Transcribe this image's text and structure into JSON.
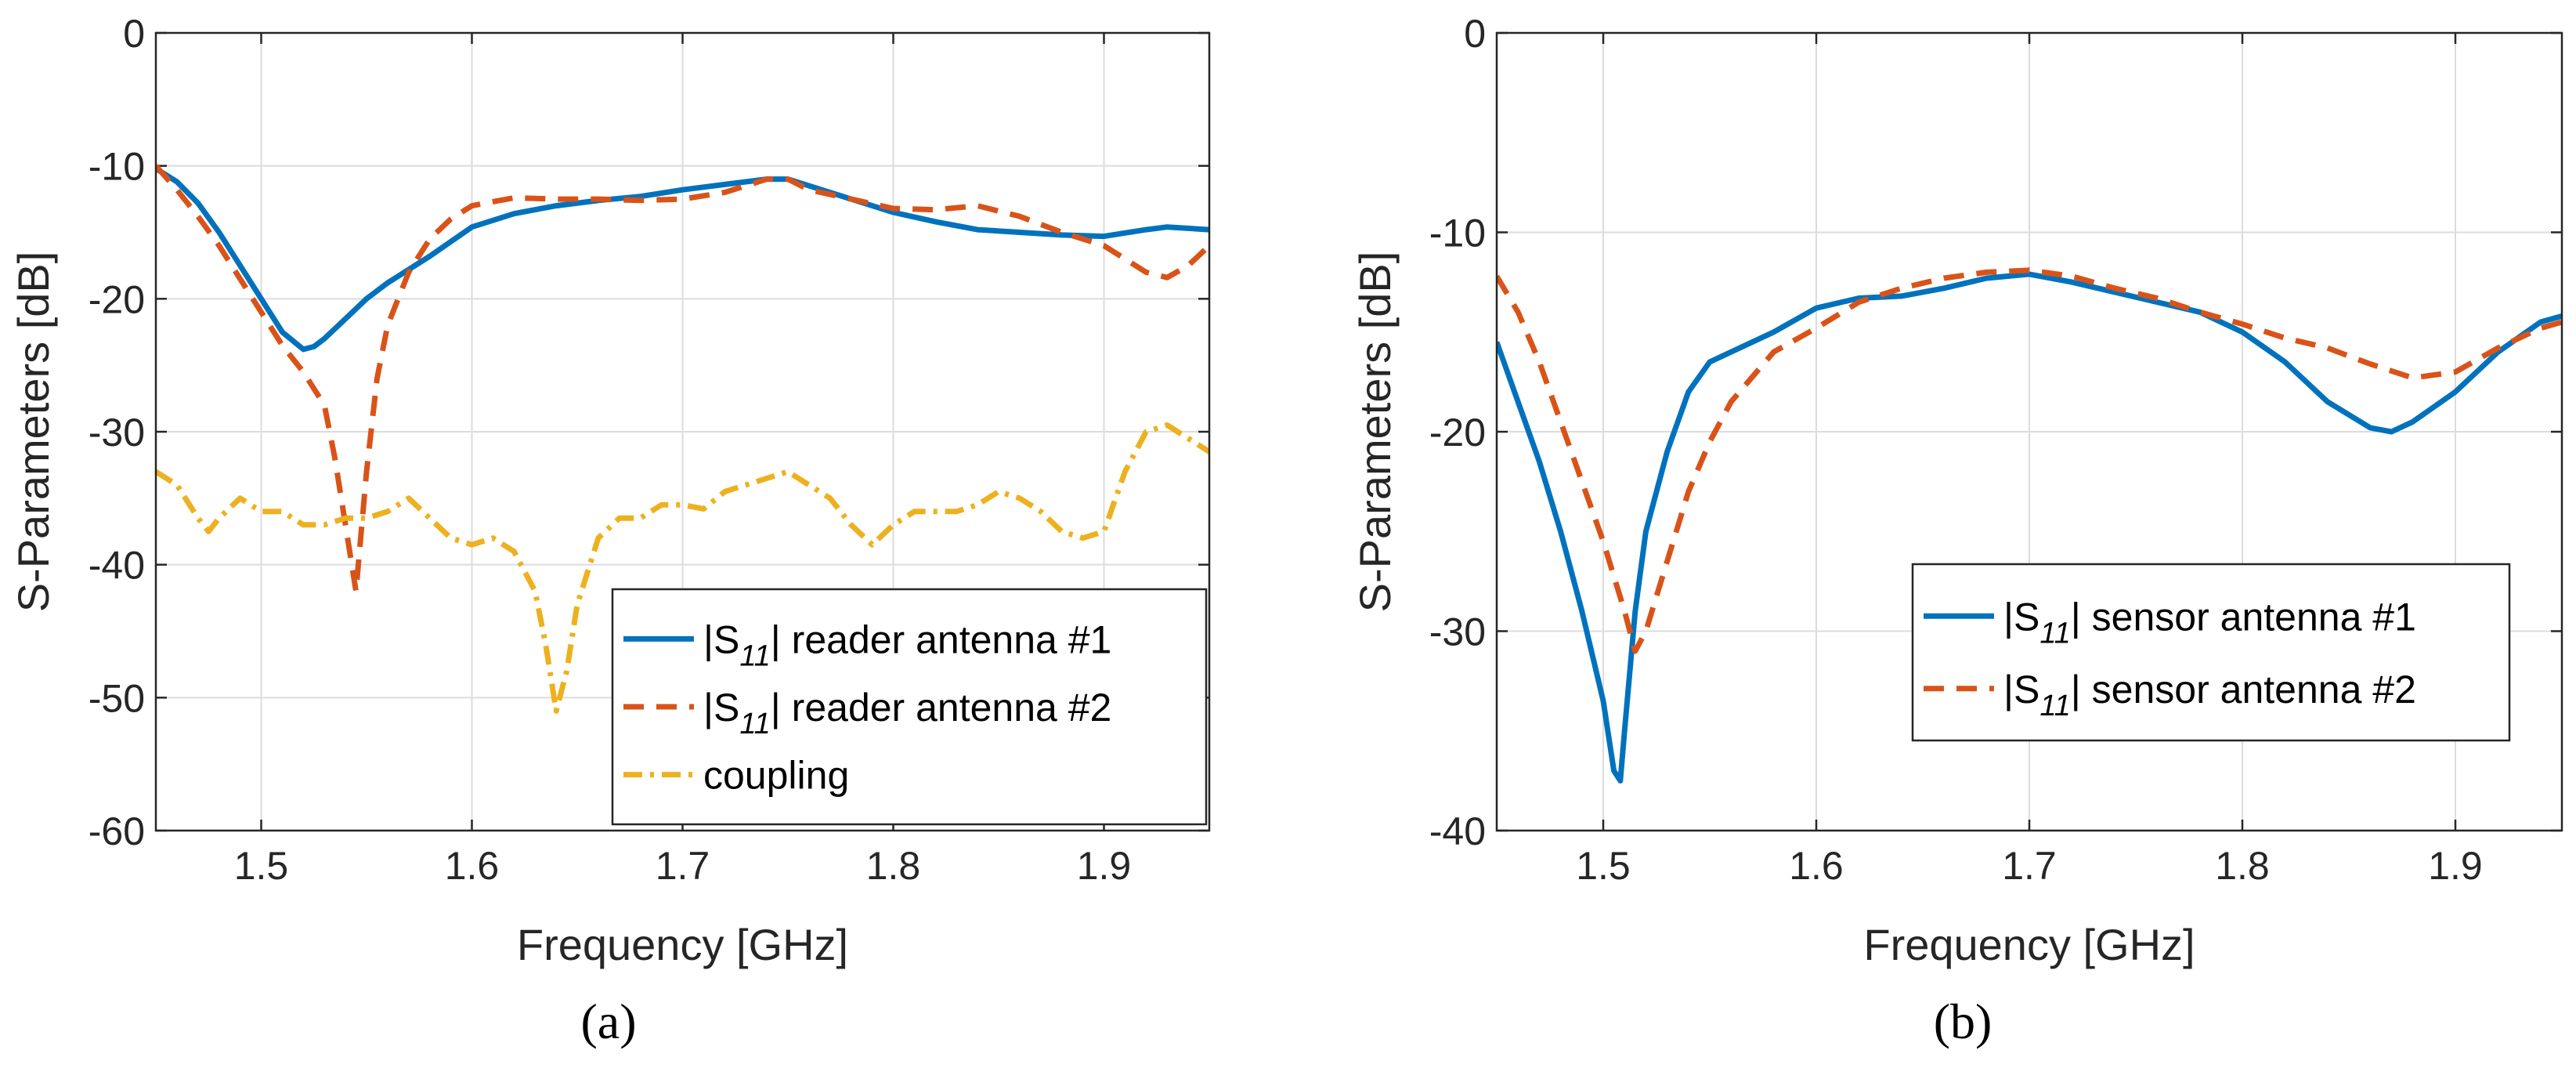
{
  "chart_data": [
    {
      "type": "line",
      "panel_label": "(a)",
      "xlabel": "Frequency [GHz]",
      "ylabel": "S-Parameters [dB]",
      "xlim": [
        1.45,
        1.95
      ],
      "ylim": [
        -60,
        0
      ],
      "xticks": [
        "1.5",
        "1.6",
        "1.7",
        "1.8",
        "1.9"
      ],
      "yticks": [
        "0",
        "-10",
        "-20",
        "-30",
        "-40",
        "-50",
        "-60"
      ],
      "grid": true,
      "legend_position": "bottom-right",
      "series": [
        {
          "name_prefix": "|S",
          "name_sub": "11",
          "name_suffix": "| reader antenna #1",
          "color": "#0072BD",
          "style": "solid",
          "x": [
            1.45,
            1.46,
            1.47,
            1.48,
            1.49,
            1.5,
            1.51,
            1.52,
            1.525,
            1.53,
            1.54,
            1.55,
            1.56,
            1.57,
            1.58,
            1.59,
            1.6,
            1.62,
            1.64,
            1.66,
            1.68,
            1.7,
            1.72,
            1.74,
            1.75,
            1.76,
            1.78,
            1.8,
            1.82,
            1.84,
            1.86,
            1.88,
            1.9,
            1.92,
            1.93,
            1.94,
            1.95
          ],
          "y": [
            -10.2,
            -11.2,
            -12.8,
            -15,
            -17.5,
            -20,
            -22.5,
            -23.8,
            -23.6,
            -23,
            -21.5,
            -20,
            -18.8,
            -17.8,
            -16.8,
            -15.7,
            -14.6,
            -13.6,
            -13,
            -12.6,
            -12.3,
            -11.8,
            -11.4,
            -11,
            -11,
            -11.5,
            -12.5,
            -13.5,
            -14.2,
            -14.8,
            -15,
            -15.2,
            -15.3,
            -14.8,
            -14.6,
            -14.7,
            -14.8
          ]
        },
        {
          "name_prefix": "|S",
          "name_sub": "11",
          "name_suffix": "| reader antenna #2",
          "color": "#D95319",
          "style": "dashed",
          "x": [
            1.45,
            1.46,
            1.47,
            1.48,
            1.49,
            1.5,
            1.51,
            1.52,
            1.53,
            1.535,
            1.54,
            1.545,
            1.55,
            1.555,
            1.56,
            1.57,
            1.58,
            1.59,
            1.6,
            1.62,
            1.64,
            1.66,
            1.68,
            1.7,
            1.72,
            1.74,
            1.75,
            1.76,
            1.78,
            1.8,
            1.82,
            1.84,
            1.86,
            1.88,
            1.9,
            1.92,
            1.93,
            1.94,
            1.95
          ],
          "y": [
            -10,
            -11.8,
            -13.8,
            -16,
            -18.5,
            -21,
            -23.5,
            -25.5,
            -28,
            -32,
            -37,
            -42,
            -33,
            -26,
            -22,
            -18,
            -15.5,
            -14,
            -13,
            -12.4,
            -12.5,
            -12.5,
            -12.6,
            -12.5,
            -12,
            -11,
            -11,
            -11.8,
            -12.5,
            -13.2,
            -13.3,
            -13,
            -13.8,
            -15,
            -16,
            -18,
            -18.4,
            -17.5,
            -16
          ]
        },
        {
          "name": "coupling",
          "color": "#EDB120",
          "style": "dashdot",
          "x": [
            1.45,
            1.46,
            1.47,
            1.475,
            1.48,
            1.49,
            1.5,
            1.51,
            1.52,
            1.53,
            1.54,
            1.55,
            1.56,
            1.57,
            1.58,
            1.59,
            1.6,
            1.61,
            1.62,
            1.63,
            1.635,
            1.64,
            1.645,
            1.65,
            1.66,
            1.67,
            1.68,
            1.69,
            1.7,
            1.71,
            1.72,
            1.73,
            1.74,
            1.75,
            1.76,
            1.77,
            1.78,
            1.79,
            1.8,
            1.81,
            1.82,
            1.83,
            1.84,
            1.85,
            1.86,
            1.87,
            1.88,
            1.89,
            1.9,
            1.91,
            1.92,
            1.93,
            1.94,
            1.95
          ],
          "y": [
            -33,
            -34,
            -36.5,
            -37.5,
            -36.5,
            -35,
            -36,
            -36,
            -37,
            -37,
            -36.5,
            -36.5,
            -36,
            -35,
            -36.5,
            -38,
            -38.5,
            -38,
            -39,
            -42,
            -46,
            -51,
            -48,
            -43,
            -38,
            -36.5,
            -36.5,
            -35.5,
            -35.5,
            -35.8,
            -34.5,
            -34,
            -33.5,
            -33,
            -34,
            -35,
            -37,
            -38.5,
            -37,
            -36,
            -36,
            -36,
            -35.5,
            -34.5,
            -35,
            -36,
            -37.5,
            -38,
            -37.5,
            -33,
            -30,
            -29.5,
            -30.5,
            -31.5
          ]
        }
      ]
    },
    {
      "type": "line",
      "panel_label": "(b)",
      "xlabel": "Frequency [GHz]",
      "ylabel": "S-Parameters [dB]",
      "xlim": [
        1.45,
        1.95
      ],
      "ylim": [
        -40,
        0
      ],
      "xticks": [
        "1.5",
        "1.6",
        "1.7",
        "1.8",
        "1.9"
      ],
      "yticks": [
        "0",
        "-10",
        "-20",
        "-30",
        "-40"
      ],
      "grid": true,
      "legend_position": "bottom-right",
      "series": [
        {
          "name_prefix": "|S",
          "name_sub": "11",
          "name_suffix": "| sensor antenna #1",
          "color": "#0072BD",
          "style": "solid",
          "x": [
            1.45,
            1.46,
            1.47,
            1.48,
            1.49,
            1.5,
            1.505,
            1.508,
            1.51,
            1.515,
            1.52,
            1.53,
            1.54,
            1.55,
            1.56,
            1.58,
            1.6,
            1.62,
            1.64,
            1.66,
            1.68,
            1.7,
            1.72,
            1.74,
            1.76,
            1.78,
            1.8,
            1.82,
            1.84,
            1.86,
            1.87,
            1.88,
            1.9,
            1.92,
            1.94,
            1.95
          ],
          "y": [
            -15.5,
            -18.5,
            -21.5,
            -25,
            -29,
            -33.5,
            -37,
            -37.5,
            -35,
            -29,
            -25,
            -21,
            -18,
            -16.5,
            -16,
            -15,
            -13.8,
            -13.3,
            -13.2,
            -12.8,
            -12.3,
            -12.1,
            -12.5,
            -13,
            -13.5,
            -14,
            -15,
            -16.5,
            -18.5,
            -19.8,
            -20,
            -19.5,
            -18,
            -16,
            -14.5,
            -14.2
          ]
        },
        {
          "name_prefix": "|S",
          "name_sub": "11",
          "name_suffix": "| sensor antenna #2",
          "color": "#D95319",
          "style": "dashed",
          "x": [
            1.45,
            1.46,
            1.47,
            1.48,
            1.49,
            1.5,
            1.51,
            1.515,
            1.52,
            1.53,
            1.54,
            1.55,
            1.56,
            1.58,
            1.6,
            1.62,
            1.64,
            1.66,
            1.68,
            1.7,
            1.72,
            1.74,
            1.76,
            1.78,
            1.8,
            1.82,
            1.84,
            1.86,
            1.88,
            1.9,
            1.92,
            1.94,
            1.95
          ],
          "y": [
            -12.2,
            -14,
            -16.5,
            -19.5,
            -22.5,
            -25.5,
            -29,
            -31,
            -30,
            -26.5,
            -23,
            -20.5,
            -18.5,
            -16,
            -14.8,
            -13.5,
            -12.8,
            -12.3,
            -12,
            -11.9,
            -12.2,
            -12.8,
            -13.3,
            -14,
            -14.6,
            -15.3,
            -15.8,
            -16.6,
            -17.3,
            -17,
            -15.8,
            -14.8,
            -14.5
          ]
        }
      ]
    }
  ]
}
